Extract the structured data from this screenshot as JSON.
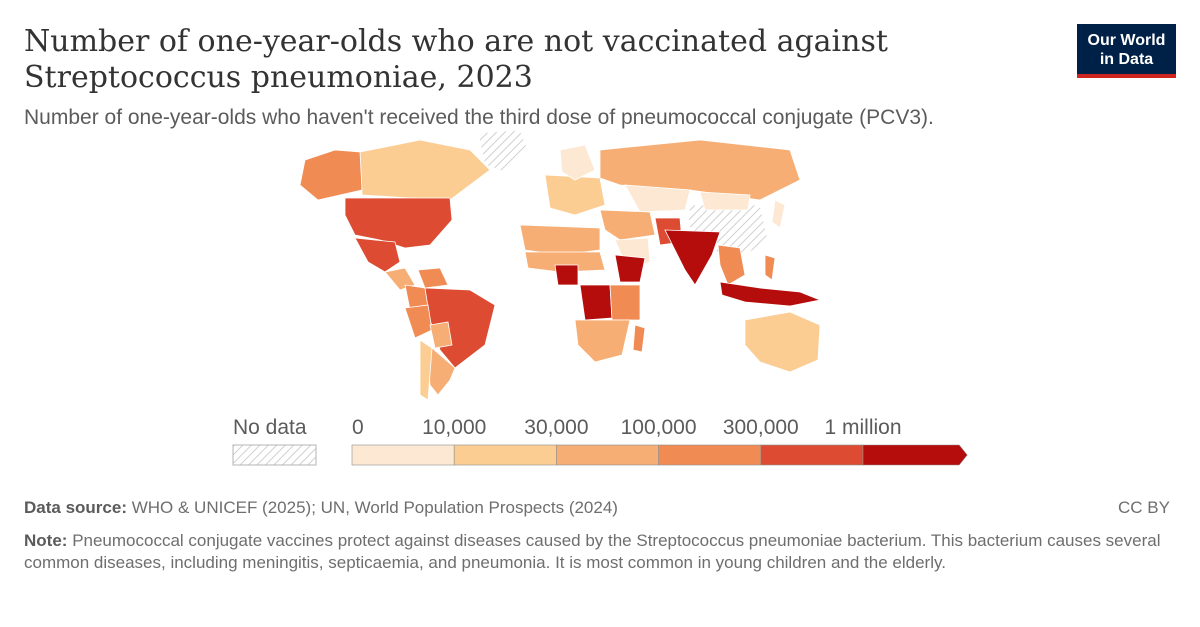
{
  "header": {
    "title": "Number of one-year-olds who are not vaccinated against Streptococcus pneumoniae, 2023",
    "subtitle": "Number of one-year-olds who haven't received the third dose of pneumococcal conjugate (PCV3)."
  },
  "logo": {
    "line1": "Our World",
    "line2": "in Data"
  },
  "legend": {
    "no_data_label": "No data",
    "ticks": [
      "0",
      "10,000",
      "30,000",
      "100,000",
      "300,000",
      "1 million"
    ],
    "bins": [
      {
        "from": 0,
        "to": 10000,
        "color": "#fde9d3"
      },
      {
        "from": 10000,
        "to": 30000,
        "color": "#fbcd93"
      },
      {
        "from": 30000,
        "to": 100000,
        "color": "#f6ae74"
      },
      {
        "from": 100000,
        "to": 300000,
        "color": "#f18b54"
      },
      {
        "from": 300000,
        "to": 1000000,
        "color": "#dc4b32"
      },
      {
        "from": 1000000,
        "to": null,
        "color": "#b50c0c"
      }
    ]
  },
  "footer": {
    "source_label": "Data source:",
    "source_text": "WHO & UNICEF (2025); UN, World Population Prospects (2024)",
    "license": "CC BY",
    "note_label": "Note:",
    "note_text": "Pneumococcal conjugate vaccines protect against diseases caused by the Streptococcus pneumoniae bacterium. This bacterium causes several common diseases, including meningitis, septicaemia, and pneumonia. It is most common in young children and the elderly."
  },
  "map": {
    "regions": [
      {
        "name": "Canada",
        "bin": 2
      },
      {
        "name": "Alaska",
        "bin": 4
      },
      {
        "name": "Greenland",
        "bin": -1
      },
      {
        "name": "United States",
        "bin": 5
      },
      {
        "name": "Mexico",
        "bin": 5
      },
      {
        "name": "Central America",
        "bin": 3
      },
      {
        "name": "Venezuela",
        "bin": 4
      },
      {
        "name": "Colombia",
        "bin": 4
      },
      {
        "name": "Brazil",
        "bin": 5
      },
      {
        "name": "Peru",
        "bin": 4
      },
      {
        "name": "Bolivia",
        "bin": 3
      },
      {
        "name": "Argentina",
        "bin": 3
      },
      {
        "name": "Chile",
        "bin": 2
      },
      {
        "name": "Western Europe",
        "bin": 2
      },
      {
        "name": "Scandinavia",
        "bin": 1
      },
      {
        "name": "Russia",
        "bin": 3
      },
      {
        "name": "Kazakhstan",
        "bin": 1
      },
      {
        "name": "China",
        "bin": -1
      },
      {
        "name": "Mongolia",
        "bin": 1
      },
      {
        "name": "Middle East",
        "bin": 3
      },
      {
        "name": "Saudi Arabia",
        "bin": 1
      },
      {
        "name": "Pakistan",
        "bin": 5
      },
      {
        "name": "India",
        "bin": 6
      },
      {
        "name": "Southeast Asia",
        "bin": 4
      },
      {
        "name": "Indonesia",
        "bin": 6
      },
      {
        "name": "Philippines",
        "bin": 4
      },
      {
        "name": "Australia",
        "bin": 2
      },
      {
        "name": "North Africa",
        "bin": 3
      },
      {
        "name": "Sahel",
        "bin": 3
      },
      {
        "name": "Nigeria",
        "bin": 6
      },
      {
        "name": "Ethiopia",
        "bin": 6
      },
      {
        "name": "DR Congo",
        "bin": 6
      },
      {
        "name": "East Africa",
        "bin": 4
      },
      {
        "name": "Southern Africa",
        "bin": 3
      },
      {
        "name": "Madagascar",
        "bin": 4
      },
      {
        "name": "Japan",
        "bin": 1
      }
    ]
  }
}
